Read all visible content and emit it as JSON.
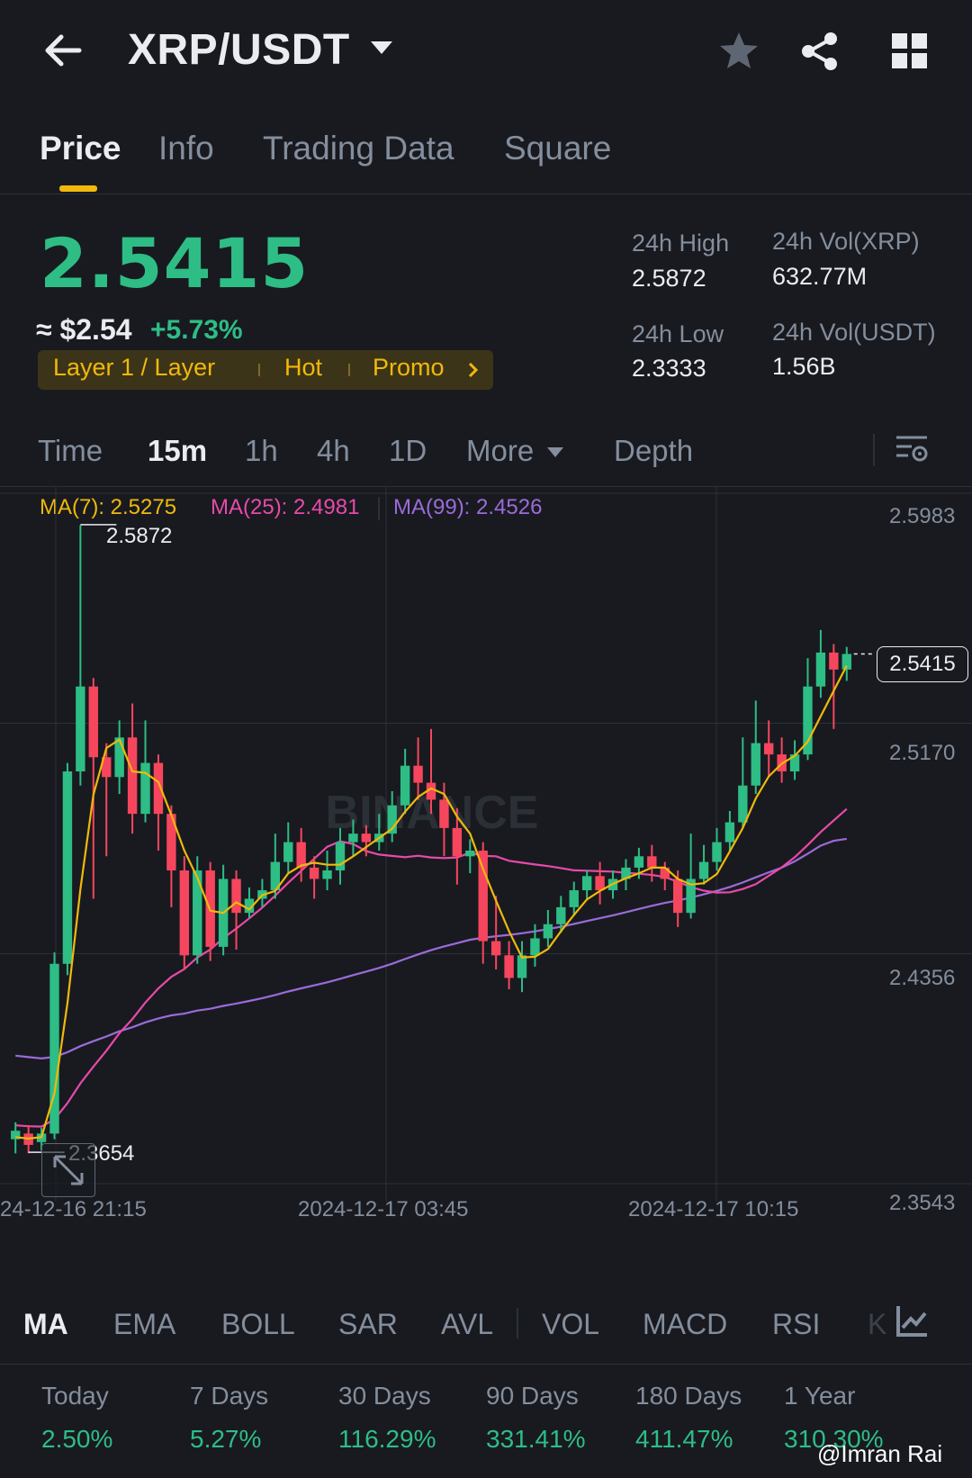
{
  "header": {
    "pair": "XRP/USDT"
  },
  "tabs": [
    {
      "label": "Price"
    },
    {
      "label": "Info"
    },
    {
      "label": "Trading Data"
    },
    {
      "label": "Square"
    }
  ],
  "ticker": {
    "last_price": "2.5415",
    "approx_usd": "≈ $2.54",
    "change_pct": "+5.73%",
    "tags": [
      "Layer 1 / Layer",
      "Hot",
      "Promo"
    ],
    "high_label": "24h High",
    "high_value": "2.5872",
    "low_label": "24h Low",
    "low_value": "2.3333",
    "vol_xrp_label": "24h Vol(XRP)",
    "vol_xrp_value": "632.77M",
    "vol_usdt_label": "24h Vol(USDT)",
    "vol_usdt_value": "1.56B"
  },
  "timeframes": [
    {
      "label": "Time"
    },
    {
      "label": "15m"
    },
    {
      "label": "1h"
    },
    {
      "label": "4h"
    },
    {
      "label": "1D"
    },
    {
      "label": "More"
    },
    {
      "label": "Depth"
    }
  ],
  "chart": {
    "ma7_label": "MA(7): 2.5275",
    "ma25_label": "MA(25): 2.4981",
    "ma99_label": "MA(99): 2.4526",
    "price_axis": [
      "2.5983",
      "2.5170",
      "2.4356",
      "2.3543"
    ],
    "time_axis": [
      "24-12-16 21:15",
      "2024-12-17 03:45",
      "2024-12-17 10:15"
    ],
    "high_marker": "2.5872",
    "low_marker": "2.3654",
    "current_price_tag": "2.5415",
    "watermark": "BINANCE"
  },
  "chart_data": {
    "type": "candlestick",
    "ylim": [
      2.3543,
      2.5983
    ],
    "x_ticks": [
      "24-12-16 21:15",
      "2024-12-17 03:45",
      "2024-12-17 10:15"
    ],
    "candles": [
      [
        2.37,
        2.373,
        2.376,
        2.365
      ],
      [
        2.372,
        2.368,
        2.375,
        2.365
      ],
      [
        2.369,
        2.372,
        2.374,
        2.366
      ],
      [
        2.372,
        2.432,
        2.436,
        2.37
      ],
      [
        2.432,
        2.5,
        2.503,
        2.428
      ],
      [
        2.5,
        2.53,
        2.587,
        2.495
      ],
      [
        2.53,
        2.505,
        2.533,
        2.455
      ],
      [
        2.505,
        2.498,
        2.51,
        2.47
      ],
      [
        2.498,
        2.512,
        2.518,
        2.492
      ],
      [
        2.512,
        2.485,
        2.524,
        2.478
      ],
      [
        2.485,
        2.503,
        2.518,
        2.482
      ],
      [
        2.503,
        2.485,
        2.506,
        2.472
      ],
      [
        2.485,
        2.465,
        2.488,
        2.452
      ],
      [
        2.465,
        2.435,
        2.47,
        2.43
      ],
      [
        2.435,
        2.465,
        2.47,
        2.432
      ],
      [
        2.465,
        2.438,
        2.468,
        2.433
      ],
      [
        2.438,
        2.462,
        2.467,
        2.435
      ],
      [
        2.462,
        2.45,
        2.465,
        2.437
      ],
      [
        2.45,
        2.455,
        2.459,
        2.448
      ],
      [
        2.455,
        2.458,
        2.462,
        2.452
      ],
      [
        2.458,
        2.468,
        2.478,
        2.455
      ],
      [
        2.468,
        2.475,
        2.482,
        2.464
      ],
      [
        2.475,
        2.466,
        2.48,
        2.461
      ],
      [
        2.466,
        2.462,
        2.47,
        2.455
      ],
      [
        2.462,
        2.465,
        2.472,
        2.458
      ],
      [
        2.465,
        2.475,
        2.48,
        2.46
      ],
      [
        2.475,
        2.478,
        2.483,
        2.47
      ],
      [
        2.478,
        2.475,
        2.481,
        2.47
      ],
      [
        2.475,
        2.478,
        2.485,
        2.472
      ],
      [
        2.478,
        2.488,
        2.493,
        2.475
      ],
      [
        2.488,
        2.502,
        2.508,
        2.485
      ],
      [
        2.502,
        2.496,
        2.512,
        2.49
      ],
      [
        2.496,
        2.49,
        2.515,
        2.485
      ],
      [
        2.49,
        2.48,
        2.496,
        2.47
      ],
      [
        2.48,
        2.47,
        2.487,
        2.46
      ],
      [
        2.47,
        2.472,
        2.476,
        2.464
      ],
      [
        2.472,
        2.44,
        2.475,
        2.432
      ],
      [
        2.44,
        2.435,
        2.456,
        2.43
      ],
      [
        2.435,
        2.427,
        2.44,
        2.423
      ],
      [
        2.427,
        2.435,
        2.44,
        2.422
      ],
      [
        2.435,
        2.441,
        2.446,
        2.431
      ],
      [
        2.441,
        2.446,
        2.451,
        2.438
      ],
      [
        2.446,
        2.452,
        2.456,
        2.443
      ],
      [
        2.452,
        2.458,
        2.461,
        2.449
      ],
      [
        2.458,
        2.463,
        2.465,
        2.455
      ],
      [
        2.463,
        2.458,
        2.468,
        2.453
      ],
      [
        2.458,
        2.462,
        2.465,
        2.455
      ],
      [
        2.462,
        2.466,
        2.469,
        2.458
      ],
      [
        2.466,
        2.47,
        2.473,
        2.462
      ],
      [
        2.47,
        2.466,
        2.474,
        2.461
      ],
      [
        2.466,
        2.462,
        2.468,
        2.458
      ],
      [
        2.462,
        2.45,
        2.465,
        2.445
      ],
      [
        2.45,
        2.462,
        2.478,
        2.448
      ],
      [
        2.462,
        2.468,
        2.474,
        2.46
      ],
      [
        2.468,
        2.475,
        2.48,
        2.465
      ],
      [
        2.475,
        2.482,
        2.486,
        2.472
      ],
      [
        2.482,
        2.495,
        2.512,
        2.48
      ],
      [
        2.495,
        2.51,
        2.525,
        2.492
      ],
      [
        2.51,
        2.506,
        2.518,
        2.498
      ],
      [
        2.506,
        2.5,
        2.512,
        2.496
      ],
      [
        2.5,
        2.506,
        2.511,
        2.497
      ],
      [
        2.506,
        2.53,
        2.54,
        2.504
      ],
      [
        2.53,
        2.542,
        2.55,
        2.526
      ],
      [
        2.542,
        2.536,
        2.545,
        2.515
      ],
      [
        2.536,
        2.5415,
        2.544,
        2.532
      ]
    ]
  },
  "indicators": [
    {
      "label": "MA"
    },
    {
      "label": "EMA"
    },
    {
      "label": "BOLL"
    },
    {
      "label": "SAR"
    },
    {
      "label": "AVL"
    },
    {
      "label": "VOL"
    },
    {
      "label": "MACD"
    },
    {
      "label": "RSI"
    },
    {
      "label": "K"
    }
  ],
  "performance": [
    {
      "label": "Today",
      "value": "2.50%"
    },
    {
      "label": "7 Days",
      "value": "5.27%"
    },
    {
      "label": "30 Days",
      "value": "116.29%"
    },
    {
      "label": "90 Days",
      "value": "331.41%"
    },
    {
      "label": "180 Days",
      "value": "411.47%"
    },
    {
      "label": "1 Year",
      "value": "310.30%"
    }
  ],
  "watermark_user": "@Imran Rai",
  "colors": {
    "up": "#2ebd85",
    "down": "#f6465d",
    "ma7": "#f0b90b",
    "ma25": "#e84aa9",
    "ma99": "#9c6bd8"
  }
}
